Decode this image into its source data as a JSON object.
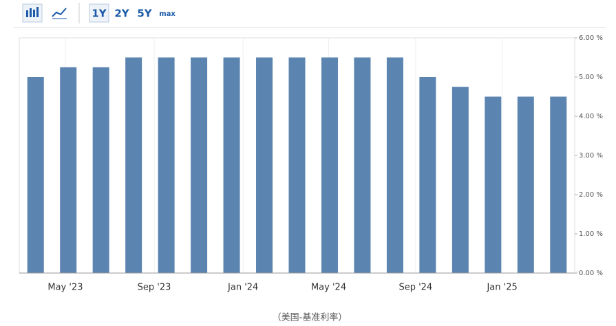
{
  "toolbar": {
    "ranges": [
      "1Y",
      "2Y",
      "5Y",
      "max"
    ]
  },
  "chart_data": {
    "type": "bar",
    "categories": [
      null,
      null,
      null,
      null,
      null,
      null,
      null,
      null,
      null,
      null,
      null,
      null,
      null,
      null,
      null,
      null,
      null
    ],
    "values": [
      5.0,
      5.25,
      5.25,
      5.5,
      5.5,
      5.5,
      5.5,
      5.5,
      5.5,
      5.5,
      5.5,
      5.5,
      5.0,
      4.75,
      4.5,
      4.5,
      4.5
    ],
    "color": "#5b84b1",
    "xlim": [
      -0.5,
      16.5
    ],
    "xticks": [
      {
        "value": 0.91,
        "label": "May '23"
      },
      {
        "value": 3.63,
        "label": "Sep '23"
      },
      {
        "value": 6.35,
        "label": "Jan '24"
      },
      {
        "value": 8.97,
        "label": "May '24"
      },
      {
        "value": 11.63,
        "label": "Sep '24"
      },
      {
        "value": 14.28,
        "label": "Jan '25"
      }
    ],
    "ylim": [
      0,
      6
    ],
    "yticks": [
      {
        "value": 0,
        "label": "0.00 %"
      },
      {
        "value": 1,
        "label": "1.00 %"
      },
      {
        "value": 2,
        "label": "2.00 %"
      },
      {
        "value": 3,
        "label": "3.00 %"
      },
      {
        "value": 4,
        "label": "4.00 %"
      },
      {
        "value": 5,
        "label": "5.00 %"
      },
      {
        "value": 6,
        "label": "6.00 %"
      }
    ],
    "grid": true,
    "caption": "（美国-基准利率）"
  }
}
